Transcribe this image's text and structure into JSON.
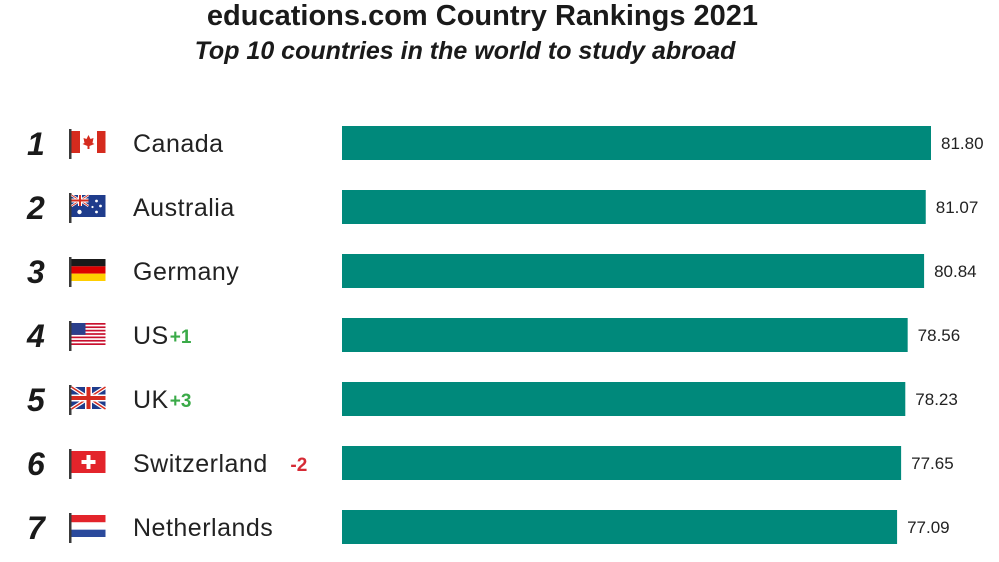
{
  "title": "educations.com Country Rankings 2021",
  "subtitle": "Top 10 countries in the world to study abroad",
  "colors": {
    "bar": "#00897b",
    "positive_change": "#3aaa48",
    "negative_change": "#d62b35",
    "text": "#222222"
  },
  "chart_data": {
    "type": "bar",
    "orientation": "horizontal",
    "title": "educations.com Country Rankings 2021",
    "subtitle": "Top 10 countries in the world to study abroad",
    "categories": [
      "Canada",
      "Australia",
      "Germany",
      "US",
      "UK",
      "Switzerland",
      "Netherlands"
    ],
    "ranks": [
      "1",
      "2",
      "3",
      "4",
      "5",
      "6",
      "7"
    ],
    "values": [
      81.8,
      81.07,
      80.84,
      78.56,
      78.23,
      77.65,
      77.09
    ],
    "value_labels": [
      "81.80",
      "81.07",
      "80.84",
      "78.56",
      "78.23",
      "77.65",
      "77.09"
    ],
    "rank_changes": [
      "",
      "",
      "",
      "+1",
      "+3",
      "-2",
      ""
    ],
    "flags": [
      "canada-flag-icon",
      "australia-flag-icon",
      "germany-flag-icon",
      "us-flag-icon",
      "uk-flag-icon",
      "switzerland-flag-icon",
      "netherlands-flag-icon"
    ],
    "xlim": [
      0,
      81.8
    ],
    "grid": false,
    "legend": "none"
  }
}
